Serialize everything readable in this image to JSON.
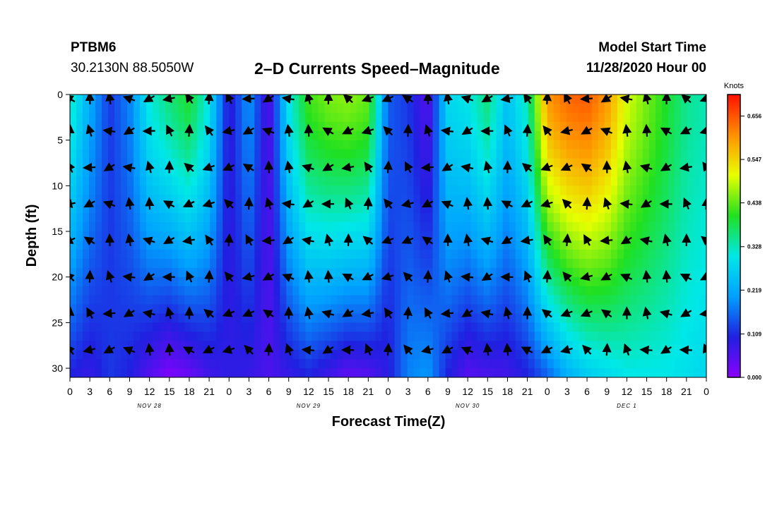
{
  "header": {
    "station": "PTBM6",
    "coords": "30.2130N 88.5050W",
    "main_title": "2–D Currents Speed–Magnitude",
    "model_start_label": "Model Start Time",
    "model_start_value": "11/28/2020 Hour 00"
  },
  "chart_data": {
    "type": "heatmap",
    "title": "2–D Currents Speed–Magnitude",
    "xlabel": "Forecast Time(Z)",
    "ylabel": "Depth (ft)",
    "x_ticks": [
      "0",
      "3",
      "6",
      "9",
      "12",
      "15",
      "18",
      "21",
      "0",
      "3",
      "6",
      "9",
      "12",
      "15",
      "18",
      "21",
      "0",
      "3",
      "6",
      "9",
      "12",
      "15",
      "18",
      "21",
      "0",
      "3",
      "6",
      "9",
      "12",
      "15",
      "18",
      "21",
      "0"
    ],
    "x_range_hours": [
      0,
      96
    ],
    "date_labels": [
      {
        "label": "NOV 28",
        "hour": 12
      },
      {
        "label": "NOV 29",
        "hour": 36
      },
      {
        "label": "NOV 30",
        "hour": 60
      },
      {
        "label": "DEC 1",
        "hour": 84
      }
    ],
    "y_ticks": [
      0,
      5,
      10,
      15,
      20,
      25,
      30
    ],
    "y_range_ft": [
      0,
      31
    ],
    "colorbar": {
      "units": "Knots",
      "ticks": [
        "0.656",
        "0.547",
        "0.438",
        "0.328",
        "0.219",
        "0.109",
        "0.000"
      ],
      "range": [
        0.0,
        0.71
      ],
      "colors": [
        "#8b00ff",
        "#2020e0",
        "#00a0ff",
        "#00e8e8",
        "#20e020",
        "#e8ff00",
        "#ff9000",
        "#ff1000"
      ]
    },
    "speed_columns": {
      "hours": [
        0,
        3,
        6,
        9,
        12,
        15,
        18,
        21,
        24,
        27,
        30,
        33,
        36,
        39,
        42,
        45,
        48,
        51,
        54,
        57,
        60,
        63,
        66,
        69,
        72,
        75,
        78,
        81,
        84,
        87,
        90,
        93,
        96
      ],
      "surface": [
        0.33,
        0.22,
        0.12,
        0.18,
        0.31,
        0.36,
        0.4,
        0.3,
        0.08,
        0.2,
        0.05,
        0.3,
        0.42,
        0.45,
        0.46,
        0.44,
        0.15,
        0.12,
        0.05,
        0.28,
        0.3,
        0.36,
        0.25,
        0.33,
        0.6,
        0.64,
        0.65,
        0.6,
        0.5,
        0.45,
        0.4,
        0.35,
        0.33
      ],
      "bottom": [
        0.1,
        0.08,
        0.12,
        0.1,
        0.05,
        0.01,
        0.03,
        0.07,
        0.09,
        0.08,
        0.06,
        0.08,
        0.1,
        0.07,
        0.04,
        0.05,
        0.09,
        0.18,
        0.2,
        0.1,
        0.05,
        0.06,
        0.07,
        0.1,
        0.15,
        0.22,
        0.26,
        0.28,
        0.3,
        0.3,
        0.3,
        0.29,
        0.28
      ]
    },
    "vector_depths_ft": [
      0,
      4,
      8,
      12,
      16,
      20,
      24,
      28
    ],
    "vectors_note": "direction arrows at 3-hour intervals; mostly pointing northwest (onshore) in upper layers"
  }
}
